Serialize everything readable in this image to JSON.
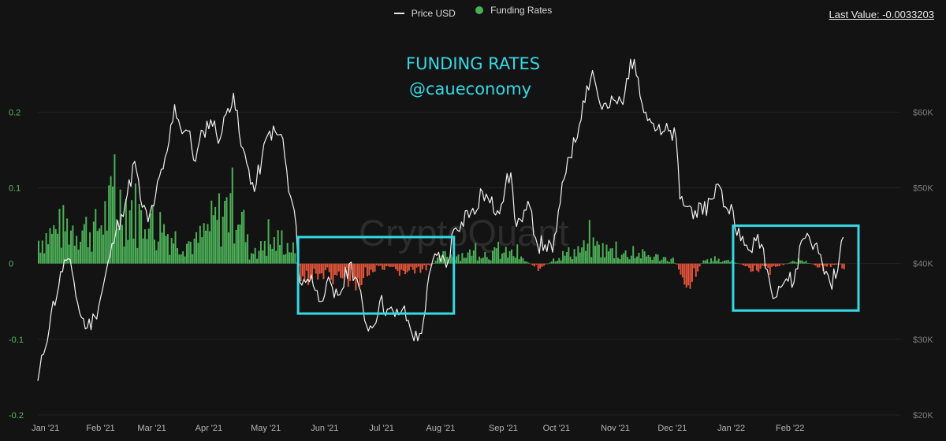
{
  "legend": {
    "price_label": "Price USD",
    "funding_label": "Funding Rates"
  },
  "last_value": "Last Value: -0.0033203",
  "overlay": {
    "title": "FUNDING RATES",
    "handle": "@caueconomy"
  },
  "watermark": "CryptoQuant",
  "colors": {
    "price_line": "#f2f2f2",
    "positive_bar": "#4caf57",
    "negative_bar": "#e2543a",
    "highlight_box": "#34d9e4",
    "background": "#131313"
  },
  "chart_data": {
    "type": "line",
    "title": "",
    "xlabel": "",
    "ylabel_left": "",
    "ylabel_right": "",
    "x_range": [
      "2021-01-01",
      "2022-03-31"
    ],
    "x_ticks": [
      {
        "label": "Jan '21",
        "date": "2021-01-05"
      },
      {
        "label": "Feb '21",
        "date": "2021-02-03"
      },
      {
        "label": "Mar '21",
        "date": "2021-03-02"
      },
      {
        "label": "Apr '21",
        "date": "2021-04-01"
      },
      {
        "label": "May '21",
        "date": "2021-05-01"
      },
      {
        "label": "Jun '21",
        "date": "2021-06-01"
      },
      {
        "label": "Jul '21",
        "date": "2021-07-01"
      },
      {
        "label": "Aug '21",
        "date": "2021-08-01"
      },
      {
        "label": "Sep '21",
        "date": "2021-09-03"
      },
      {
        "label": "Oct '21",
        "date": "2021-10-01"
      },
      {
        "label": "Nov '21",
        "date": "2021-11-01"
      },
      {
        "label": "Dec '21",
        "date": "2021-12-01"
      },
      {
        "label": "Jan '22",
        "date": "2022-01-01"
      },
      {
        "label": "Feb '22",
        "date": "2022-02-01"
      }
    ],
    "y_left": {
      "ticks": [
        "0.2",
        "0.1",
        "0",
        "-0.1",
        "-0.2"
      ],
      "range": [
        -0.2,
        0.2
      ]
    },
    "y_right": {
      "ticks": [
        "$60K",
        "$50K",
        "$40K",
        "$30K",
        "$20K"
      ],
      "range": [
        20000,
        60000
      ]
    },
    "series": [
      {
        "name": "Price USD",
        "axis": "right",
        "style": "line",
        "points": [
          [
            "2021-01-01",
            24500
          ],
          [
            "2021-01-04",
            28000
          ],
          [
            "2021-01-08",
            33500
          ],
          [
            "2021-01-12",
            37000
          ],
          [
            "2021-01-15",
            40500
          ],
          [
            "2021-01-19",
            39000
          ],
          [
            "2021-01-23",
            33500
          ],
          [
            "2021-01-27",
            31500
          ],
          [
            "2021-01-31",
            33000
          ],
          [
            "2021-02-04",
            36500
          ],
          [
            "2021-02-08",
            41000
          ],
          [
            "2021-02-11",
            44000
          ],
          [
            "2021-02-14",
            46500
          ],
          [
            "2021-02-17",
            49000
          ],
          [
            "2021-02-21",
            53500
          ],
          [
            "2021-02-24",
            48500
          ],
          [
            "2021-02-28",
            45500
          ],
          [
            "2021-03-04",
            49000
          ],
          [
            "2021-03-08",
            52500
          ],
          [
            "2021-03-11",
            56000
          ],
          [
            "2021-03-14",
            61000
          ],
          [
            "2021-03-17",
            58000
          ],
          [
            "2021-03-21",
            57500
          ],
          [
            "2021-03-25",
            53500
          ],
          [
            "2021-03-29",
            57500
          ],
          [
            "2021-04-02",
            59000
          ],
          [
            "2021-04-07",
            56500
          ],
          [
            "2021-04-11",
            60500
          ],
          [
            "2021-04-14",
            62500
          ],
          [
            "2021-04-18",
            55500
          ],
          [
            "2021-04-22",
            52500
          ],
          [
            "2021-04-25",
            49500
          ],
          [
            "2021-04-29",
            54000
          ],
          [
            "2021-05-03",
            57500
          ],
          [
            "2021-05-07",
            57000
          ],
          [
            "2021-05-10",
            56500
          ],
          [
            "2021-05-13",
            49500
          ],
          [
            "2021-05-16",
            47000
          ],
          [
            "2021-05-19",
            37500
          ],
          [
            "2021-05-22",
            37500
          ],
          [
            "2021-05-25",
            38500
          ],
          [
            "2021-05-29",
            35000
          ],
          [
            "2021-06-02",
            37500
          ],
          [
            "2021-06-06",
            35500
          ],
          [
            "2021-06-10",
            36500
          ],
          [
            "2021-06-14",
            40000
          ],
          [
            "2021-06-18",
            38000
          ],
          [
            "2021-06-22",
            32500
          ],
          [
            "2021-06-26",
            31500
          ],
          [
            "2021-06-30",
            35000
          ],
          [
            "2021-07-04",
            34000
          ],
          [
            "2021-07-08",
            33000
          ],
          [
            "2021-07-12",
            34000
          ],
          [
            "2021-07-16",
            31500
          ],
          [
            "2021-07-20",
            29800
          ],
          [
            "2021-07-23",
            32500
          ],
          [
            "2021-07-27",
            39500
          ],
          [
            "2021-07-31",
            41500
          ],
          [
            "2021-08-04",
            39500
          ],
          [
            "2021-08-08",
            44500
          ],
          [
            "2021-08-12",
            45500
          ],
          [
            "2021-08-15",
            47000
          ],
          [
            "2021-08-19",
            46500
          ],
          [
            "2021-08-23",
            49500
          ],
          [
            "2021-08-27",
            48000
          ],
          [
            "2021-08-31",
            47000
          ],
          [
            "2021-09-04",
            50000
          ],
          [
            "2021-09-07",
            52000
          ],
          [
            "2021-09-09",
            46000
          ],
          [
            "2021-09-13",
            45500
          ],
          [
            "2021-09-17",
            47500
          ],
          [
            "2021-09-21",
            42500
          ],
          [
            "2021-09-25",
            42500
          ],
          [
            "2021-09-29",
            41500
          ],
          [
            "2021-10-03",
            48000
          ],
          [
            "2021-10-07",
            54000
          ],
          [
            "2021-10-11",
            56000
          ],
          [
            "2021-10-15",
            61500
          ],
          [
            "2021-10-20",
            65500
          ],
          [
            "2021-10-24",
            61000
          ],
          [
            "2021-10-28",
            60500
          ],
          [
            "2021-11-01",
            61500
          ],
          [
            "2021-11-05",
            61000
          ],
          [
            "2021-11-09",
            67000
          ],
          [
            "2021-11-13",
            64500
          ],
          [
            "2021-11-17",
            60000
          ],
          [
            "2021-11-21",
            58500
          ],
          [
            "2021-11-25",
            57000
          ],
          [
            "2021-11-29",
            57500
          ],
          [
            "2021-12-03",
            56500
          ],
          [
            "2021-12-05",
            48500
          ],
          [
            "2021-12-09",
            47500
          ],
          [
            "2021-12-13",
            47000
          ],
          [
            "2021-12-17",
            46500
          ],
          [
            "2021-12-21",
            48500
          ],
          [
            "2021-12-25",
            50500
          ],
          [
            "2021-12-29",
            47500
          ],
          [
            "2022-01-02",
            47000
          ],
          [
            "2022-01-06",
            43000
          ],
          [
            "2022-01-10",
            41800
          ],
          [
            "2022-01-14",
            43000
          ],
          [
            "2022-01-18",
            42000
          ],
          [
            "2022-01-22",
            36500
          ],
          [
            "2022-01-26",
            37000
          ],
          [
            "2022-01-30",
            38000
          ],
          [
            "2022-02-03",
            37500
          ],
          [
            "2022-02-07",
            43000
          ],
          [
            "2022-02-10",
            44000
          ],
          [
            "2022-02-14",
            42500
          ],
          [
            "2022-02-18",
            40000
          ],
          [
            "2022-02-22",
            37500
          ],
          [
            "2022-02-26",
            39000
          ],
          [
            "2022-03-01",
            43500
          ]
        ]
      },
      {
        "name": "Funding Rates",
        "axis": "left",
        "style": "bar",
        "note": "daily bars; positive values green, negative values red",
        "segments": [
          [
            "2021-01-01",
            0.035
          ],
          [
            "2021-01-15",
            0.055
          ],
          [
            "2021-01-31",
            0.05
          ],
          [
            "2021-02-10",
            0.09
          ],
          [
            "2021-02-19",
            0.085
          ],
          [
            "2021-02-28",
            0.05
          ],
          [
            "2021-03-06",
            0.055
          ],
          [
            "2021-03-15",
            0.035
          ],
          [
            "2021-03-25",
            0.03
          ],
          [
            "2021-04-03",
            0.06
          ],
          [
            "2021-04-10",
            0.08
          ],
          [
            "2021-04-16",
            0.095
          ],
          [
            "2021-04-22",
            0.015
          ],
          [
            "2021-05-01",
            0.025
          ],
          [
            "2021-05-09",
            0.035
          ],
          [
            "2021-05-15",
            0.02
          ],
          [
            "2021-05-20",
            -0.025
          ],
          [
            "2021-05-31",
            -0.015
          ],
          [
            "2021-06-10",
            -0.02
          ],
          [
            "2021-06-18",
            -0.025
          ],
          [
            "2021-06-28",
            -0.008
          ],
          [
            "2021-07-09",
            -0.012
          ],
          [
            "2021-07-23",
            -0.01
          ],
          [
            "2021-08-02",
            0.012
          ],
          [
            "2021-08-20",
            0.015
          ],
          [
            "2021-09-07",
            0.015
          ],
          [
            "2021-09-22",
            -0.008
          ],
          [
            "2021-10-01",
            0.01
          ],
          [
            "2021-10-14",
            0.022
          ],
          [
            "2021-10-22",
            0.024
          ],
          [
            "2021-11-02",
            0.015
          ],
          [
            "2021-11-15",
            0.013
          ],
          [
            "2021-12-01",
            0.006
          ],
          [
            "2021-12-09",
            -0.03
          ],
          [
            "2021-12-17",
            0.005
          ],
          [
            "2022-01-01",
            0.004
          ],
          [
            "2022-01-12",
            -0.009
          ],
          [
            "2022-01-24",
            -0.005
          ],
          [
            "2022-02-06",
            0.006
          ],
          [
            "2022-02-15",
            -0.004
          ],
          [
            "2022-03-01",
            -0.0033203
          ]
        ]
      }
    ],
    "highlight_boxes": [
      {
        "x_from": "2021-05-18",
        "x_to": "2021-08-08",
        "y_from": -0.066,
        "y_to": 0.035
      },
      {
        "x_from": "2022-01-02",
        "x_to": "2022-03-09",
        "y_from": -0.062,
        "y_to": 0.05
      }
    ],
    "grid": {
      "horizontal": true,
      "vertical": false
    },
    "legend_position": "top-center"
  }
}
